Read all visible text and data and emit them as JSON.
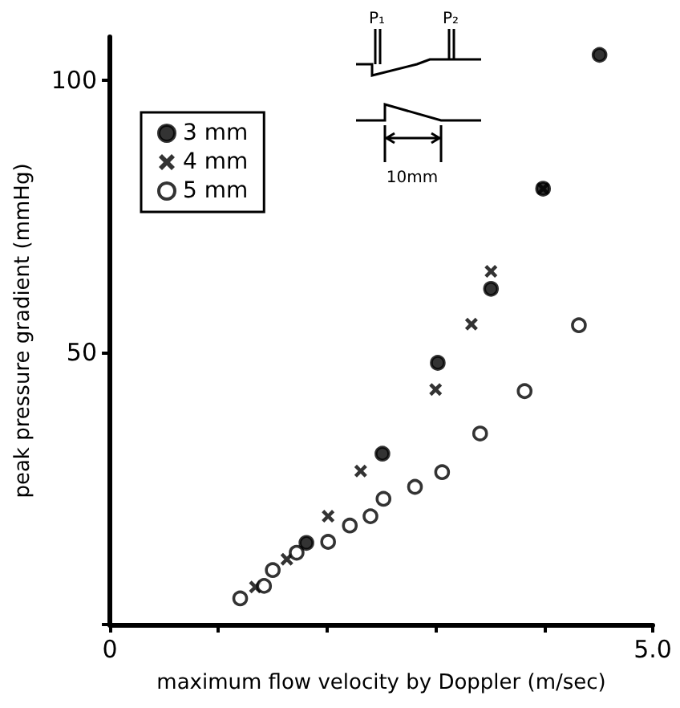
{
  "chart_data": {
    "type": "scatter",
    "xlabel": "maximum flow velocity by Doppler (m/sec)",
    "ylabel": "peak pressure gradient (mmHg)",
    "xlim": [
      0,
      5
    ],
    "xticks": [
      {
        "value": 0,
        "label": "0"
      },
      {
        "value": 1,
        "label": null
      },
      {
        "value": 2,
        "label": null
      },
      {
        "value": 3,
        "label": null
      },
      {
        "value": 4,
        "label": null
      },
      {
        "value": 5,
        "label": "5.0"
      }
    ],
    "ylim": [
      0,
      108
    ],
    "yticks": [
      {
        "value": 0,
        "label": null
      },
      50,
      100
    ],
    "grid": false,
    "legend": "top left",
    "annotations": [
      "P₁",
      "P₂",
      "10mm"
    ],
    "series": [
      {
        "name": "3 mm",
        "color": "#000000",
        "marker": "circle",
        "x": [
          1.81,
          2.51,
          3.02,
          3.51,
          3.99,
          4.51
        ],
        "values": [
          15.0,
          31.4,
          48.1,
          61.7,
          80.1,
          104.7
        ]
      },
      {
        "name": "4 mm",
        "color": "#000000",
        "marker": "cross",
        "x": [
          1.34,
          1.63,
          2.01,
          2.31,
          3.0,
          3.33,
          3.51,
          3.99
        ],
        "values": [
          6.9,
          12.0,
          19.9,
          28.2,
          43.2,
          55.2,
          64.9,
          80.1
        ]
      },
      {
        "name": "5 mm",
        "color": "#ffffff",
        "marker": "circle",
        "x": [
          1.2,
          1.42,
          1.5,
          1.72,
          2.01,
          2.21,
          2.4,
          2.52,
          2.81,
          3.06,
          3.41,
          3.82,
          4.32
        ],
        "values": [
          4.8,
          7.1,
          10.0,
          13.2,
          15.2,
          18.2,
          19.9,
          23.1,
          25.3,
          28.0,
          35.1,
          42.9,
          55.0
        ]
      }
    ]
  }
}
